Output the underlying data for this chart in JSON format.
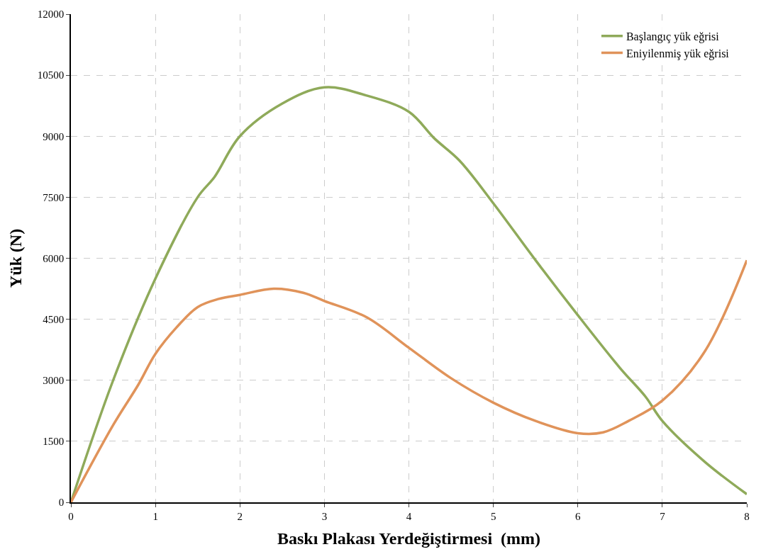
{
  "chart_data": {
    "type": "line",
    "xlabel": "Baskı Plakası Yerdeğiştirmesi  (mm)",
    "ylabel": "Yük (N)",
    "xlim": [
      0,
      8
    ],
    "xticks": [
      0,
      1,
      2,
      3,
      4,
      5,
      6,
      7,
      8
    ],
    "ylim": [
      0,
      12000
    ],
    "yticks": [
      0,
      1500,
      3000,
      4500,
      6000,
      7500,
      9000,
      10500,
      12000
    ],
    "grid": true,
    "legend": "top right",
    "marker": "none",
    "line_style": "solid",
    "series": [
      {
        "name": "Başlangıç yük eğrisi",
        "color": "#8faa5a",
        "x": [
          0,
          0.5,
          1,
          1.5,
          1.7,
          2,
          2.5,
          3,
          3.5,
          4,
          4.3,
          4.6,
          5,
          5.5,
          6,
          6.5,
          6.8,
          7,
          7.5,
          8
        ],
        "values": [
          0,
          3000,
          5500,
          7500,
          8000,
          9000,
          9800,
          10200,
          10000,
          9600,
          8950,
          8400,
          7350,
          5950,
          4600,
          3300,
          2600,
          2000,
          1000,
          200
        ]
      },
      {
        "name": "Eniyilenmiş yük eğrisi",
        "color": "#e0935a",
        "x": [
          0,
          0.5,
          0.8,
          1,
          1.25,
          1.5,
          1.75,
          2,
          2.4,
          2.75,
          3,
          3.5,
          4,
          4.5,
          5,
          5.5,
          6,
          6.3,
          6.6,
          7,
          7.5,
          8
        ],
        "values": [
          0,
          1900,
          2900,
          3650,
          4300,
          4800,
          5000,
          5100,
          5250,
          5150,
          4950,
          4550,
          3800,
          3050,
          2450,
          2000,
          1700,
          1720,
          2000,
          2500,
          3700,
          5950
        ]
      }
    ]
  }
}
